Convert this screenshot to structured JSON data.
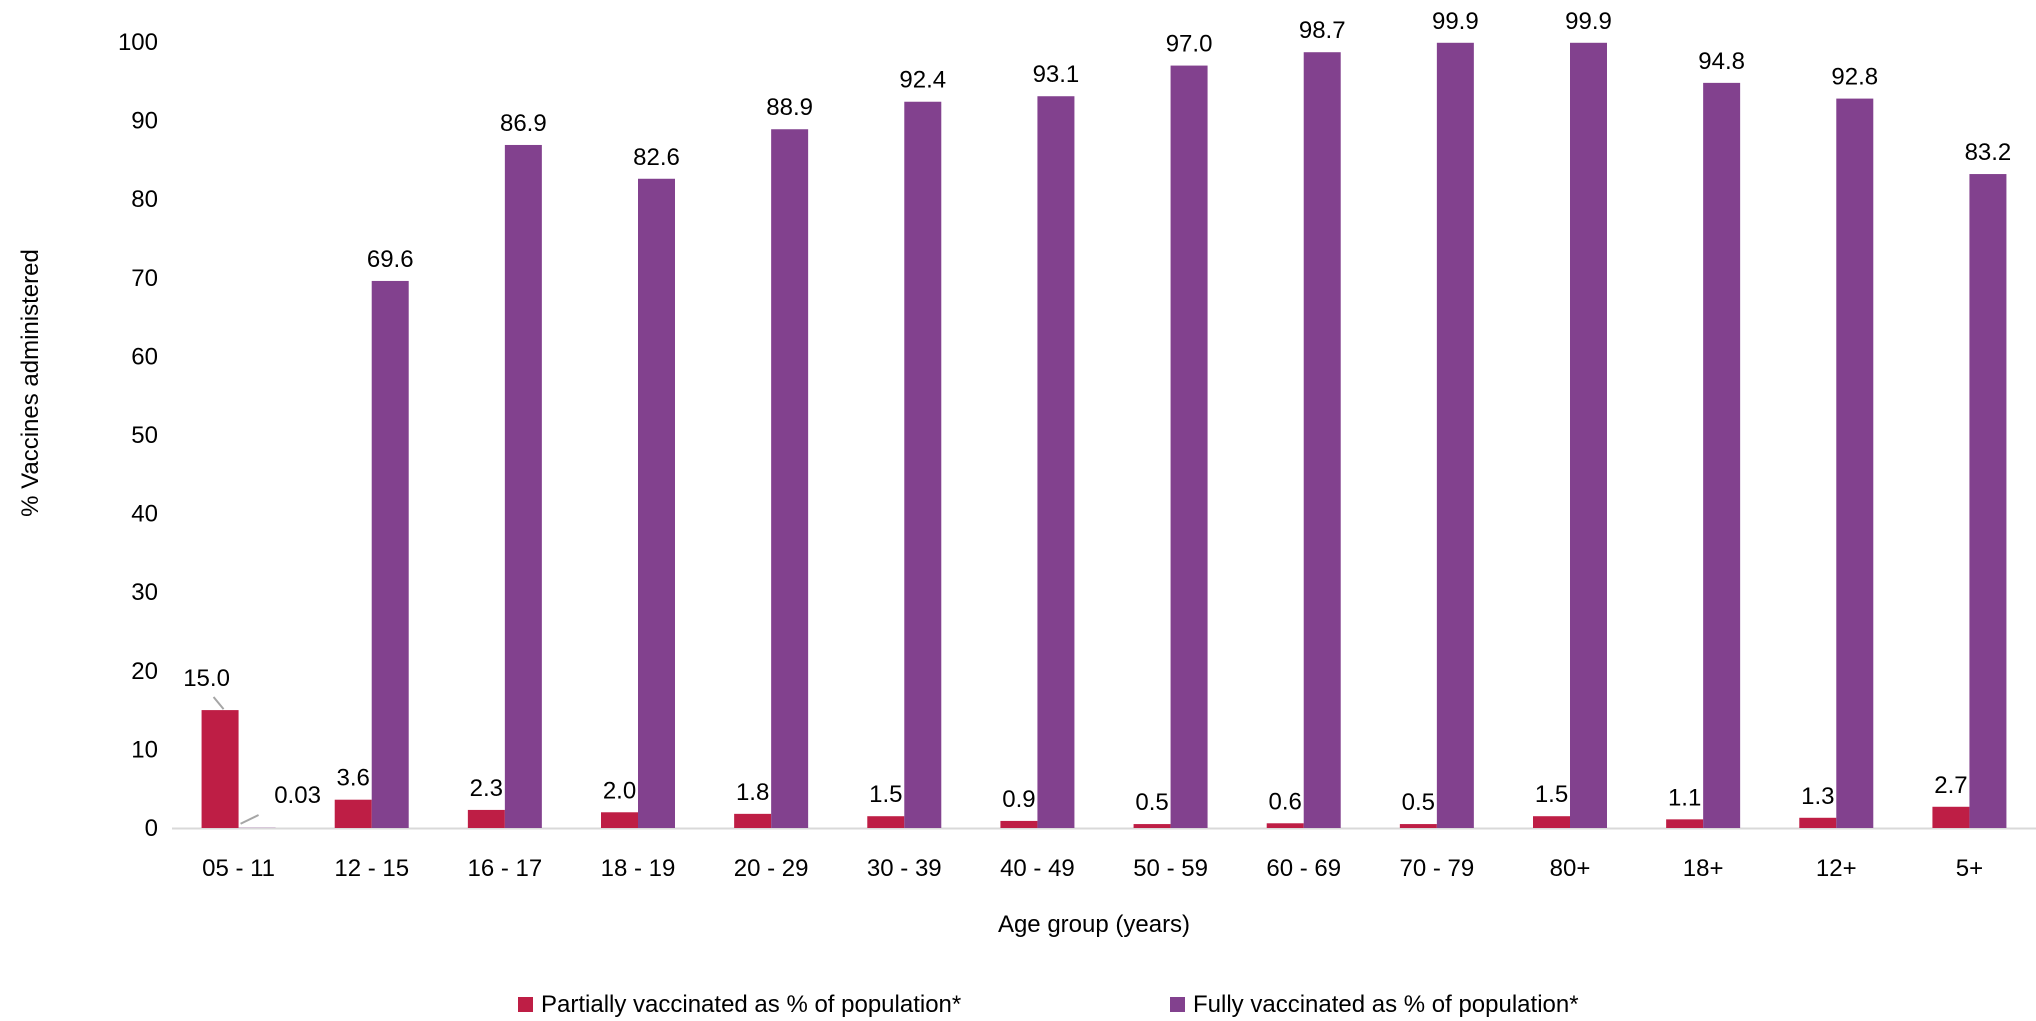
{
  "chart_data": {
    "type": "bar",
    "title": "",
    "xlabel": "Age group (years)",
    "ylabel": "% Vaccines administered",
    "ylim": [
      0,
      100
    ],
    "yticks": [
      0,
      10,
      20,
      30,
      40,
      50,
      60,
      70,
      80,
      90,
      100
    ],
    "grid": false,
    "legend_position": "bottom",
    "categories": [
      "05 - 11",
      "12 - 15",
      "16 - 17",
      "18 - 19",
      "20 - 29",
      "30 - 39",
      "40 - 49",
      "50 - 59",
      "60 - 69",
      "70 - 79",
      "80+",
      "18+",
      "12+",
      "5+"
    ],
    "series": [
      {
        "name": "Partially vaccinated as % of population*",
        "color": "#BE1E45",
        "values": [
          15.0,
          3.6,
          2.3,
          2.0,
          1.8,
          1.5,
          0.9,
          0.5,
          0.6,
          0.5,
          1.5,
          1.1,
          1.3,
          2.7
        ],
        "labels": [
          "15.0",
          "3.6",
          "2.3",
          "2.0",
          "1.8",
          "1.5",
          "0.9",
          "0.5",
          "0.6",
          "0.5",
          "1.5",
          "1.1",
          "1.3",
          "2.7"
        ]
      },
      {
        "name": "Fully vaccinated as % of population*",
        "color": "#82418E",
        "values": [
          0.03,
          69.6,
          86.9,
          82.6,
          88.9,
          92.4,
          93.1,
          97.0,
          98.7,
          99.9,
          99.9,
          94.8,
          92.8,
          83.2
        ],
        "labels": [
          "0.03",
          "69.6",
          "86.9",
          "82.6",
          "88.9",
          "92.4",
          "93.1",
          "97.0",
          "98.7",
          "99.9",
          "99.9",
          "94.8",
          "92.8",
          "83.2"
        ]
      }
    ]
  }
}
